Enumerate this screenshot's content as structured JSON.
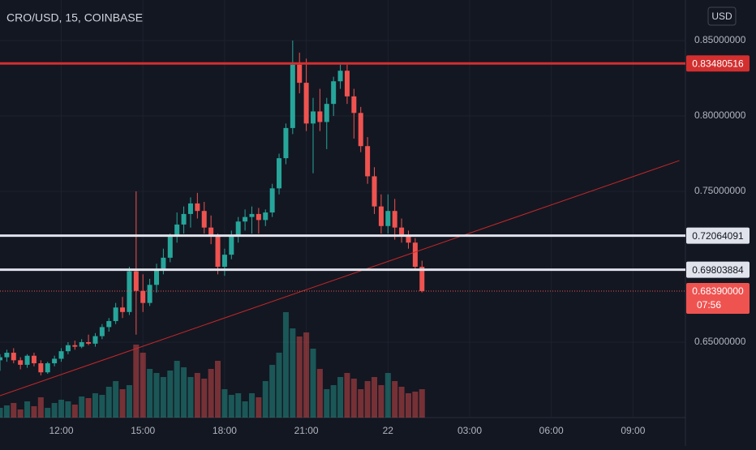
{
  "chart_data": {
    "type": "candlestick",
    "title": "CRO/USD, 15, COINBASE",
    "currency": "USD",
    "ylim": [
      0.6,
      0.8769
    ],
    "yticks": [
      {
        "value": 0.65,
        "label": "0.65000000"
      },
      {
        "value": 0.75,
        "label": "0.75000000"
      },
      {
        "value": 0.8,
        "label": "0.80000000"
      },
      {
        "value": 0.85,
        "label": "0.85000000"
      }
    ],
    "xlim": [
      0,
      100.7
    ],
    "xticks": [
      {
        "value": 9,
        "label": "12:00"
      },
      {
        "value": 21,
        "label": "15:00"
      },
      {
        "value": 33,
        "label": "18:00"
      },
      {
        "value": 45,
        "label": "21:00"
      },
      {
        "value": 57,
        "label": "22"
      },
      {
        "value": 69,
        "label": "03:00"
      },
      {
        "value": 81,
        "label": "06:00"
      },
      {
        "value": 93,
        "label": "09:00"
      }
    ],
    "open": [
      0.638,
      0.64,
      0.643,
      0.638,
      0.635,
      0.641,
      0.636,
      0.63,
      0.636,
      0.639,
      0.644,
      0.648,
      0.647,
      0.65,
      0.649,
      0.654,
      0.66,
      0.664,
      0.673,
      0.67,
      0.697,
      0.684,
      0.676,
      0.688,
      0.698,
      0.706,
      0.72,
      0.728,
      0.735,
      0.742,
      0.737,
      0.726,
      0.72,
      0.7,
      0.708,
      0.72,
      0.73,
      0.733,
      0.735,
      0.731,
      0.736,
      0.752,
      0.772,
      0.792,
      0.834,
      0.822,
      0.795,
      0.803,
      0.796,
      0.808,
      0.823,
      0.83,
      0.813,
      0.802,
      0.78,
      0.76,
      0.74,
      0.727,
      0.737,
      0.726,
      0.721,
      0.716,
      0.7
    ],
    "high": [
      0.642,
      0.645,
      0.646,
      0.64,
      0.642,
      0.643,
      0.638,
      0.637,
      0.641,
      0.646,
      0.65,
      0.651,
      0.652,
      0.655,
      0.656,
      0.662,
      0.666,
      0.676,
      0.68,
      0.7,
      0.75,
      0.695,
      0.692,
      0.702,
      0.712,
      0.722,
      0.736,
      0.74,
      0.746,
      0.749,
      0.743,
      0.734,
      0.722,
      0.712,
      0.724,
      0.733,
      0.738,
      0.74,
      0.739,
      0.738,
      0.755,
      0.775,
      0.795,
      0.85,
      0.842,
      0.838,
      0.812,
      0.818,
      0.812,
      0.826,
      0.834,
      0.834,
      0.818,
      0.806,
      0.786,
      0.766,
      0.748,
      0.748,
      0.745,
      0.732,
      0.724,
      0.719,
      0.704
    ],
    "low": [
      0.631,
      0.637,
      0.636,
      0.632,
      0.633,
      0.634,
      0.628,
      0.629,
      0.634,
      0.637,
      0.642,
      0.645,
      0.646,
      0.648,
      0.647,
      0.652,
      0.657,
      0.662,
      0.666,
      0.668,
      0.655,
      0.67,
      0.674,
      0.683,
      0.695,
      0.703,
      0.716,
      0.722,
      0.726,
      0.732,
      0.722,
      0.715,
      0.695,
      0.694,
      0.705,
      0.716,
      0.724,
      0.722,
      0.722,
      0.727,
      0.733,
      0.748,
      0.768,
      0.788,
      0.815,
      0.79,
      0.762,
      0.79,
      0.778,
      0.8,
      0.818,
      0.808,
      0.785,
      0.776,
      0.755,
      0.735,
      0.722,
      0.722,
      0.718,
      0.716,
      0.712,
      0.698,
      0.683
    ],
    "close": [
      0.64,
      0.643,
      0.638,
      0.635,
      0.641,
      0.636,
      0.63,
      0.636,
      0.639,
      0.644,
      0.648,
      0.647,
      0.65,
      0.649,
      0.654,
      0.66,
      0.664,
      0.673,
      0.67,
      0.697,
      0.684,
      0.676,
      0.688,
      0.698,
      0.706,
      0.72,
      0.728,
      0.735,
      0.742,
      0.737,
      0.726,
      0.72,
      0.7,
      0.708,
      0.72,
      0.73,
      0.733,
      0.735,
      0.731,
      0.736,
      0.752,
      0.772,
      0.792,
      0.834,
      0.822,
      0.795,
      0.803,
      0.796,
      0.808,
      0.823,
      0.83,
      0.813,
      0.802,
      0.78,
      0.76,
      0.74,
      0.727,
      0.737,
      0.726,
      0.721,
      0.716,
      0.7,
      0.6839
    ],
    "volume": [
      12,
      15,
      18,
      10,
      20,
      14,
      25,
      12,
      18,
      22,
      20,
      16,
      26,
      24,
      30,
      28,
      38,
      45,
      35,
      40,
      90,
      80,
      60,
      55,
      50,
      58,
      70,
      62,
      50,
      55,
      48,
      60,
      70,
      35,
      28,
      30,
      20,
      30,
      25,
      45,
      65,
      80,
      130,
      110,
      100,
      105,
      85,
      60,
      35,
      40,
      50,
      55,
      48,
      35,
      45,
      50,
      40,
      55,
      45,
      38,
      30,
      32,
      35
    ],
    "volume_lim": [
      0,
      200
    ],
    "up_color": "#26a69a",
    "down_color": "#ef5350",
    "hlines": [
      {
        "value": 0.83480516,
        "label": "0.83480516",
        "color": "#d32f2f"
      },
      {
        "value": 0.72064091,
        "label": "0.72064091",
        "color": "#e0e3eb"
      },
      {
        "value": 0.69803884,
        "label": "0.69803884",
        "color": "#e0e3eb"
      }
    ],
    "trendline": {
      "x": [
        0,
        99.8
      ],
      "y": [
        0.6145,
        0.7704
      ],
      "color": "#c62828"
    },
    "last_price": {
      "value": 0.6839,
      "label": "0.68390000",
      "countdown": "07:56",
      "color": "#ef5350"
    }
  }
}
